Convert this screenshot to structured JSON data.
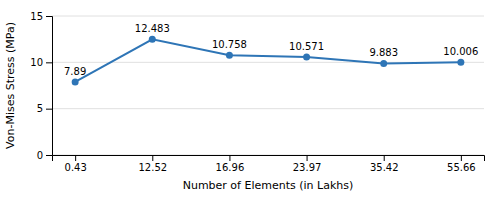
{
  "chart_data": {
    "type": "line",
    "categories": [
      "0.43",
      "12.52",
      "16.96",
      "23.97",
      "35.42",
      "55.66"
    ],
    "values": [
      7.89,
      12.483,
      10.758,
      10.571,
      9.883,
      10.006
    ],
    "xlabel": "Number of Elements (in Lakhs)",
    "ylabel": "Von-Mises Stress (MPa)",
    "ylim": [
      0,
      15
    ],
    "yticks": [
      0,
      5,
      10,
      15
    ],
    "grid": true,
    "data_labels": true,
    "color": "#2E75B6",
    "marker": "circle"
  }
}
